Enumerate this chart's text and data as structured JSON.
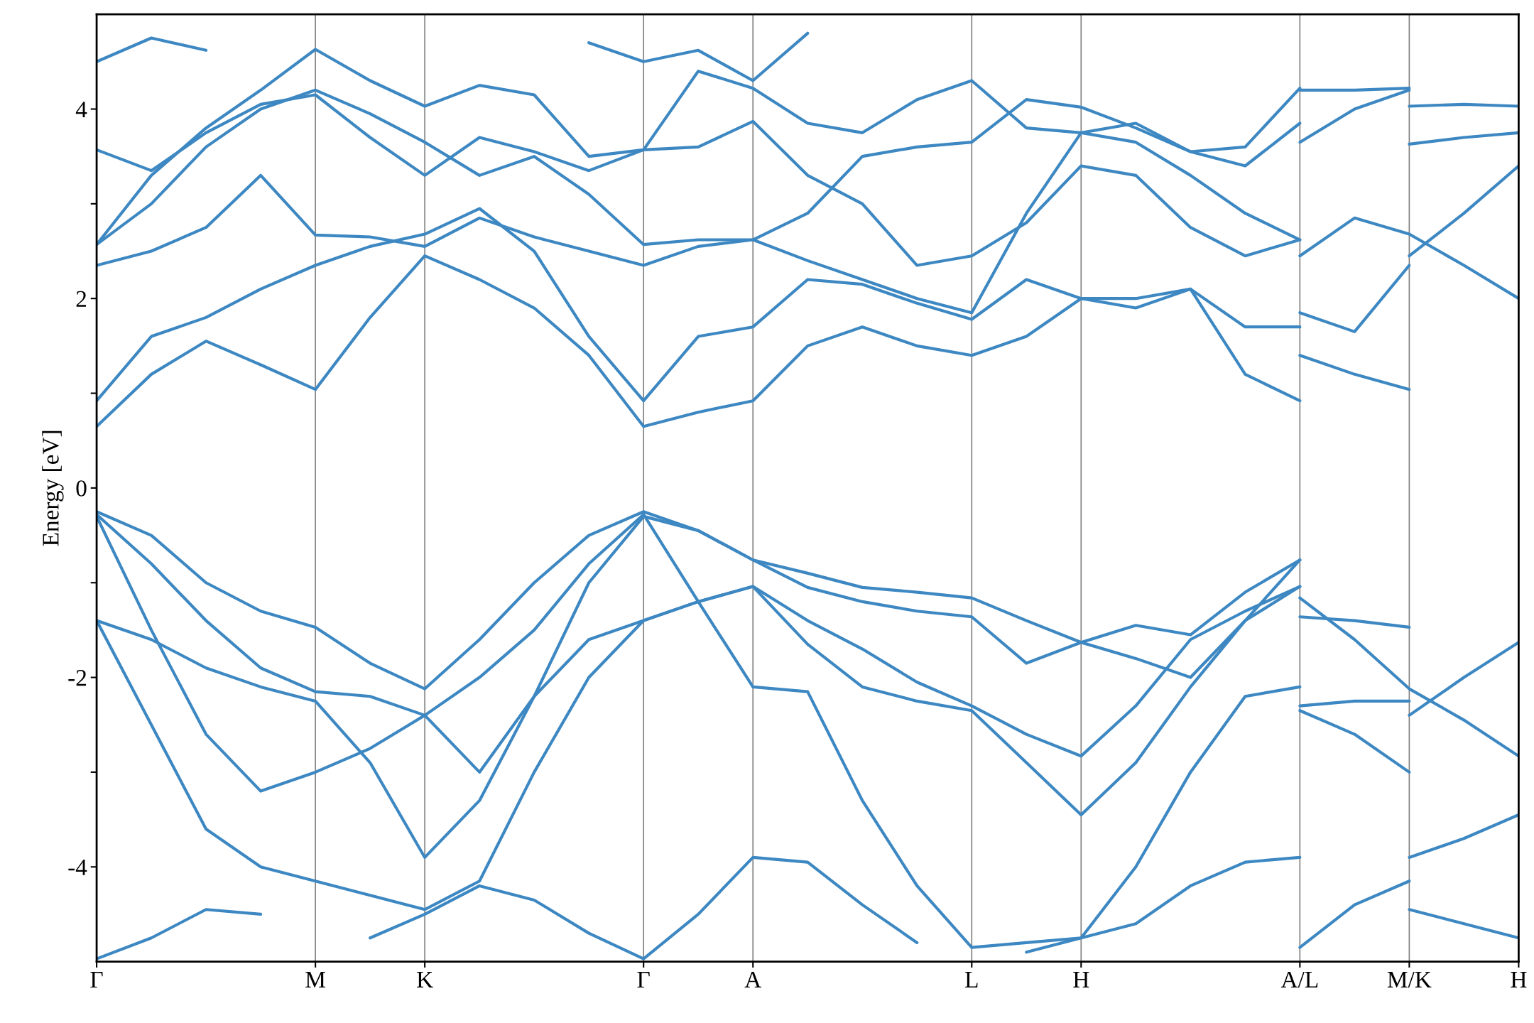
{
  "chart_data": {
    "type": "line",
    "ylabel": "Energy [eV]",
    "grid": "x",
    "line_style": "solid",
    "marker": "none",
    "ylim": [
      -5,
      5
    ],
    "yticks": [
      -4,
      {
        "value": -3,
        "label": null
      },
      -2,
      {
        "value": -1,
        "label": null
      },
      0,
      {
        "value": 1,
        "label": null
      },
      2,
      {
        "value": 3,
        "label": null
      },
      4
    ],
    "categories": [
      "Γ",
      null,
      null,
      null,
      "M",
      null,
      "K",
      null,
      null,
      null,
      "Γ",
      null,
      "A",
      null,
      null,
      null,
      "L",
      null,
      "H",
      null,
      null,
      null,
      "A/L",
      null,
      "M/K",
      null,
      "H"
    ],
    "series": [
      {
        "color": "#3d88c2",
        "values": [
          -0.25,
          -0.5,
          -1.0,
          -1.3,
          -1.47,
          -1.85,
          -2.12,
          -1.6,
          -1.0,
          -0.5,
          -0.25,
          -0.45,
          -0.76,
          -0.9,
          -1.05,
          -1.1,
          -1.16,
          -1.4,
          -1.63,
          -1.45,
          -1.55,
          -1.1,
          -0.76,
          null,
          null,
          null,
          null
        ]
      },
      {
        "color": "#3d88c2",
        "values": [
          -0.28,
          -0.8,
          -1.4,
          -1.9,
          -2.15,
          -2.2,
          -2.4,
          -2.0,
          -1.5,
          -0.8,
          -0.28,
          -1.2,
          -2.1,
          -2.15,
          -3.3,
          -4.2,
          -4.85,
          -4.8,
          -4.75,
          -4.0,
          -3.0,
          -2.2,
          -2.1,
          null,
          null,
          null,
          null
        ]
      },
      {
        "color": "#3d88c2",
        "values": [
          -0.3,
          -1.5,
          -2.6,
          -3.2,
          -3.0,
          -2.75,
          -2.4,
          -3.0,
          -2.2,
          -1.0,
          -0.3,
          -0.45,
          -0.76,
          -1.05,
          -1.2,
          -1.3,
          -1.36,
          -1.85,
          -1.63,
          -1.8,
          -2.0,
          -1.4,
          -1.04,
          null,
          null,
          null,
          null
        ]
      },
      {
        "color": "#3d88c2",
        "values": [
          -1.4,
          -1.6,
          -1.9,
          -2.1,
          -2.25,
          -2.9,
          -3.9,
          -3.3,
          -2.2,
          -1.6,
          -1.4,
          -1.2,
          -1.04,
          -1.4,
          -1.7,
          -2.05,
          -2.3,
          -2.6,
          -2.83,
          -2.3,
          -1.6,
          -1.3,
          -1.04,
          null,
          null,
          null,
          null
        ]
      },
      {
        "color": "#3d88c2",
        "values": [
          -1.4,
          -2.5,
          -3.6,
          -4.0,
          -4.15,
          -4.3,
          -4.45,
          -4.15,
          -3.0,
          -2.0,
          -1.4,
          -1.2,
          -1.04,
          -1.65,
          -2.1,
          -2.25,
          -2.35,
          -2.9,
          -3.45,
          -2.9,
          -2.1,
          -1.4,
          -0.76,
          null,
          null,
          null,
          null
        ]
      },
      {
        "color": "#3d88c2",
        "values": [
          -4.97,
          -4.75,
          -4.45,
          -4.5,
          null,
          -4.75,
          -4.5,
          -4.2,
          -4.35,
          -4.7,
          -4.97,
          -4.5,
          -3.9,
          -3.95,
          -4.4,
          -4.8,
          null,
          -4.9,
          -4.75,
          -4.6,
          -4.2,
          -3.95,
          -3.9,
          null,
          null,
          null,
          null
        ]
      },
      {
        "color": "#3d88c2",
        "values": [
          0.65,
          1.2,
          1.55,
          1.3,
          1.04,
          1.8,
          2.45,
          2.2,
          1.9,
          1.4,
          0.65,
          0.8,
          0.92,
          1.5,
          1.7,
          1.5,
          1.4,
          1.6,
          2.0,
          2.0,
          2.1,
          1.2,
          0.92,
          null,
          null,
          null,
          null
        ]
      },
      {
        "color": "#3d88c2",
        "values": [
          0.92,
          1.6,
          1.8,
          2.1,
          2.35,
          2.55,
          2.68,
          2.95,
          2.5,
          1.6,
          0.92,
          1.6,
          1.7,
          2.2,
          2.15,
          1.95,
          1.78,
          2.2,
          2.0,
          1.9,
          2.1,
          1.7,
          1.7,
          null,
          null,
          null,
          null
        ]
      },
      {
        "color": "#3d88c2",
        "values": [
          2.35,
          2.5,
          2.75,
          3.3,
          2.67,
          2.65,
          2.55,
          2.85,
          2.65,
          2.5,
          2.35,
          2.55,
          2.62,
          2.4,
          2.2,
          2.0,
          1.85,
          2.9,
          3.75,
          3.65,
          3.3,
          2.9,
          2.62,
          null,
          null,
          null,
          null
        ]
      },
      {
        "color": "#3d88c2",
        "values": [
          2.57,
          3.0,
          3.6,
          4.0,
          4.2,
          3.95,
          3.65,
          3.3,
          3.5,
          3.1,
          2.57,
          2.62,
          2.62,
          2.9,
          3.5,
          3.6,
          3.65,
          4.1,
          4.02,
          3.8,
          3.55,
          3.4,
          3.85,
          null,
          null,
          null,
          null
        ]
      },
      {
        "color": "#3d88c2",
        "values": [
          2.57,
          3.3,
          3.8,
          4.2,
          4.63,
          4.3,
          4.03,
          4.25,
          4.15,
          3.5,
          3.57,
          4.4,
          4.22,
          3.85,
          3.75,
          4.1,
          4.3,
          3.8,
          3.75,
          3.85,
          3.55,
          3.6,
          4.22,
          null,
          null,
          null,
          null
        ]
      },
      {
        "color": "#3d88c2",
        "values": [
          3.57,
          3.35,
          3.75,
          4.05,
          4.15,
          3.7,
          3.3,
          3.7,
          3.55,
          3.35,
          3.57,
          3.6,
          3.87,
          3.3,
          3.0,
          2.35,
          2.45,
          2.8,
          3.4,
          3.3,
          2.75,
          2.45,
          2.62,
          null,
          null,
          null,
          null
        ]
      },
      {
        "color": "#3d88c2",
        "values": [
          4.5,
          4.75,
          4.62,
          null,
          null,
          null,
          null,
          null,
          null,
          4.7,
          4.5,
          4.62,
          4.3,
          4.8,
          null,
          null,
          null,
          null,
          null,
          null,
          null,
          null,
          null,
          null,
          null,
          null,
          null
        ]
      },
      {
        "color": "#3d88c2",
        "values": [
          null,
          null,
          null,
          null,
          null,
          null,
          null,
          null,
          null,
          null,
          null,
          null,
          null,
          null,
          null,
          null,
          null,
          null,
          null,
          null,
          null,
          null,
          -1.16,
          -1.6,
          -2.12,
          -2.45,
          -2.83
        ]
      },
      {
        "color": "#3d88c2",
        "values": [
          null,
          null,
          null,
          null,
          null,
          null,
          null,
          null,
          null,
          null,
          null,
          null,
          null,
          null,
          null,
          null,
          null,
          null,
          null,
          null,
          null,
          null,
          -1.36,
          -1.4,
          -1.47,
          null,
          null
        ]
      },
      {
        "color": "#3d88c2",
        "values": [
          null,
          null,
          null,
          null,
          null,
          null,
          null,
          null,
          null,
          null,
          null,
          null,
          null,
          null,
          null,
          null,
          null,
          null,
          null,
          null,
          null,
          null,
          -2.3,
          -2.25,
          -2.25,
          null,
          null
        ]
      },
      {
        "color": "#3d88c2",
        "values": [
          null,
          null,
          null,
          null,
          null,
          null,
          null,
          null,
          null,
          null,
          null,
          null,
          null,
          null,
          null,
          null,
          null,
          null,
          null,
          null,
          null,
          null,
          -2.35,
          -2.6,
          -3.0,
          null,
          null
        ]
      },
      {
        "color": "#3d88c2",
        "values": [
          null,
          null,
          null,
          null,
          null,
          null,
          null,
          null,
          null,
          null,
          null,
          null,
          null,
          null,
          null,
          null,
          null,
          null,
          null,
          null,
          null,
          null,
          -4.85,
          -4.4,
          -4.15,
          null,
          null
        ]
      },
      {
        "color": "#3d88c2",
        "values": [
          null,
          null,
          null,
          null,
          null,
          null,
          null,
          null,
          null,
          null,
          null,
          null,
          null,
          null,
          null,
          null,
          null,
          null,
          null,
          null,
          null,
          null,
          1.4,
          1.2,
          1.04,
          null,
          null
        ]
      },
      {
        "color": "#3d88c2",
        "values": [
          null,
          null,
          null,
          null,
          null,
          null,
          null,
          null,
          null,
          null,
          null,
          null,
          null,
          null,
          null,
          null,
          null,
          null,
          null,
          null,
          null,
          null,
          1.85,
          1.65,
          2.35,
          null,
          null
        ]
      },
      {
        "color": "#3d88c2",
        "values": [
          null,
          null,
          null,
          null,
          null,
          null,
          null,
          null,
          null,
          null,
          null,
          null,
          null,
          null,
          null,
          null,
          null,
          null,
          null,
          null,
          null,
          null,
          2.45,
          2.85,
          2.68,
          2.35,
          2.0
        ]
      },
      {
        "color": "#3d88c2",
        "values": [
          null,
          null,
          null,
          null,
          null,
          null,
          null,
          null,
          null,
          null,
          null,
          null,
          null,
          null,
          null,
          null,
          null,
          null,
          null,
          null,
          null,
          null,
          3.65,
          4.0,
          4.2,
          null,
          null
        ]
      },
      {
        "color": "#3d88c2",
        "values": [
          null,
          null,
          null,
          null,
          null,
          null,
          null,
          null,
          null,
          null,
          null,
          null,
          null,
          null,
          null,
          null,
          null,
          null,
          null,
          null,
          null,
          null,
          4.2,
          4.2,
          4.22,
          null,
          null
        ]
      },
      {
        "color": "#3d88c2",
        "values": [
          null,
          null,
          null,
          null,
          null,
          null,
          null,
          null,
          null,
          null,
          null,
          null,
          null,
          null,
          null,
          null,
          null,
          null,
          null,
          null,
          null,
          null,
          null,
          null,
          -2.4,
          -2.0,
          -1.63
        ]
      },
      {
        "color": "#3d88c2",
        "values": [
          null,
          null,
          null,
          null,
          null,
          null,
          null,
          null,
          null,
          null,
          null,
          null,
          null,
          null,
          null,
          null,
          null,
          null,
          null,
          null,
          null,
          null,
          null,
          null,
          -3.9,
          -3.7,
          -3.45
        ]
      },
      {
        "color": "#3d88c2",
        "values": [
          null,
          null,
          null,
          null,
          null,
          null,
          null,
          null,
          null,
          null,
          null,
          null,
          null,
          null,
          null,
          null,
          null,
          null,
          null,
          null,
          null,
          null,
          null,
          null,
          -4.45,
          -4.6,
          -4.75
        ]
      },
      {
        "color": "#3d88c2",
        "values": [
          null,
          null,
          null,
          null,
          null,
          null,
          null,
          null,
          null,
          null,
          null,
          null,
          null,
          null,
          null,
          null,
          null,
          null,
          null,
          null,
          null,
          null,
          null,
          null,
          2.45,
          2.9,
          3.4
        ]
      },
      {
        "color": "#3d88c2",
        "values": [
          null,
          null,
          null,
          null,
          null,
          null,
          null,
          null,
          null,
          null,
          null,
          null,
          null,
          null,
          null,
          null,
          null,
          null,
          null,
          null,
          null,
          null,
          null,
          null,
          3.63,
          3.7,
          3.75
        ]
      },
      {
        "color": "#3d88c2",
        "values": [
          null,
          null,
          null,
          null,
          null,
          null,
          null,
          null,
          null,
          null,
          null,
          null,
          null,
          null,
          null,
          null,
          null,
          null,
          null,
          null,
          null,
          null,
          null,
          null,
          4.03,
          4.05,
          4.03
        ]
      }
    ]
  }
}
